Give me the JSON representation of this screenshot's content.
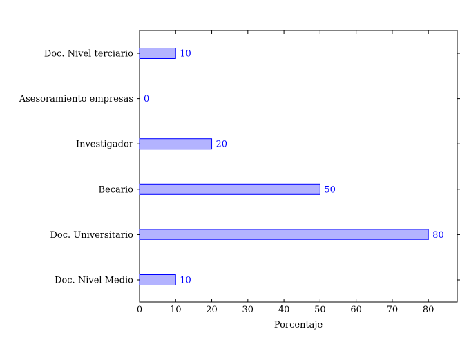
{
  "chart_data": {
    "type": "bar",
    "orientation": "horizontal",
    "title": "",
    "xlabel": "Porcentaje",
    "ylabel": "",
    "categories": [
      "Doc. Nivel Medio",
      "Doc. Universitario",
      "Becario",
      "Investigador",
      "Asesoramiento empresas",
      "Doc. Nivel terciario"
    ],
    "values": [
      10,
      80,
      50,
      20,
      0,
      10
    ],
    "xlim": [
      0,
      88
    ],
    "xticks": [
      0,
      10,
      20,
      30,
      40,
      50,
      60,
      70,
      80
    ],
    "grid": false,
    "legend": "none",
    "colors": {
      "bar_fill": "#b3b3ff",
      "bar_stroke": "#0000ff",
      "label": "#0000ff",
      "axis": "#000000"
    }
  }
}
